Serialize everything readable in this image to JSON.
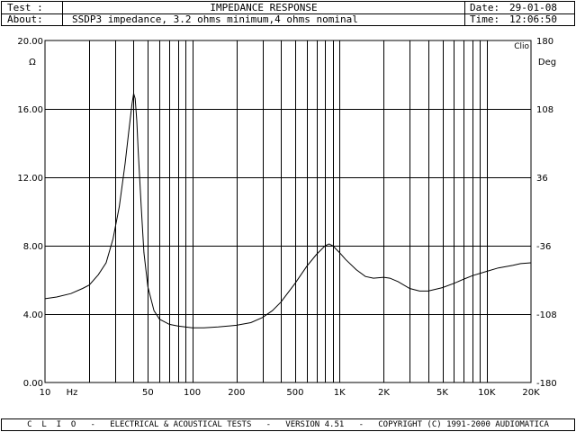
{
  "header": {
    "test_label": "Test :",
    "test_title": "IMPEDANCE RESPONSE",
    "about_label": "About:",
    "about_text": "SSDP3 impedance, 3.2 ohms minimum,4 ohms nominal",
    "date_label": "Date:",
    "date_value": "29-01-08",
    "time_label": "Time:",
    "time_value": "12:06:50"
  },
  "footer": {
    "text": "C  L  I  O   -   ELECTRICAL & ACOUSTICAL TESTS   -   VERSION 4.51   -   COPYRIGHT (C) 1991-2000 AUDIOMATICA"
  },
  "chart_data": {
    "type": "line",
    "title": "IMPEDANCE RESPONSE",
    "brand_label": "Clio",
    "x_scale": "log",
    "xlim": [
      10,
      20000
    ],
    "ylim": [
      0,
      20
    ],
    "y2lim": [
      -180,
      180
    ],
    "ylabel": "Ω",
    "y2label": "Deg",
    "xunit": "Hz",
    "x_ticks": [
      {
        "value": 10,
        "label": "10"
      },
      {
        "value": 50,
        "label": "50"
      },
      {
        "value": 100,
        "label": "100"
      },
      {
        "value": 200,
        "label": "200"
      },
      {
        "value": 500,
        "label": "500"
      },
      {
        "value": 1000,
        "label": "1K"
      },
      {
        "value": 2000,
        "label": "2K"
      },
      {
        "value": 5000,
        "label": "5K"
      },
      {
        "value": 10000,
        "label": "10K"
      },
      {
        "value": 20000,
        "label": "20K"
      }
    ],
    "y_ticks": [
      {
        "value": 0,
        "label": "0.00"
      },
      {
        "value": 4,
        "label": "4.00"
      },
      {
        "value": 8,
        "label": "8.00"
      },
      {
        "value": 12,
        "label": "12.00"
      },
      {
        "value": 16,
        "label": "16.00"
      },
      {
        "value": 20,
        "label": "20.00"
      }
    ],
    "y2_ticks": [
      {
        "value": -180,
        "label": "-180"
      },
      {
        "value": -108,
        "label": "-108"
      },
      {
        "value": -36,
        "label": "-36"
      },
      {
        "value": 36,
        "label": "36"
      },
      {
        "value": 108,
        "label": "108"
      },
      {
        "value": 180,
        "label": "180"
      }
    ],
    "grid": true,
    "series": [
      {
        "values_x": [
          10,
          12,
          15,
          18,
          20,
          23,
          26,
          29,
          32,
          35,
          37,
          39,
          40,
          41,
          42,
          43,
          45,
          47,
          50,
          55,
          60,
          70,
          80,
          100,
          120,
          150,
          200,
          250,
          300,
          350,
          400,
          500,
          600,
          700,
          800,
          850,
          900,
          1000,
          1100,
          1300,
          1500,
          1700,
          2000,
          2200,
          2500,
          3000,
          3500,
          4000,
          5000,
          6000,
          7000,
          8000,
          10000,
          12000,
          15000,
          17000,
          20000
        ],
        "values": [
          4.9,
          5.0,
          5.2,
          5.5,
          5.7,
          6.3,
          7.0,
          8.4,
          10.3,
          12.8,
          14.6,
          16.3,
          16.9,
          16.6,
          15.3,
          13.5,
          10.3,
          7.6,
          5.6,
          4.2,
          3.7,
          3.4,
          3.3,
          3.2,
          3.2,
          3.25,
          3.35,
          3.5,
          3.8,
          4.2,
          4.7,
          5.8,
          6.8,
          7.5,
          8.0,
          8.1,
          8.0,
          7.6,
          7.2,
          6.6,
          6.2,
          6.1,
          6.15,
          6.1,
          5.9,
          5.5,
          5.35,
          5.35,
          5.55,
          5.8,
          6.05,
          6.25,
          6.5,
          6.7,
          6.85,
          6.95,
          7.0
        ]
      }
    ]
  }
}
